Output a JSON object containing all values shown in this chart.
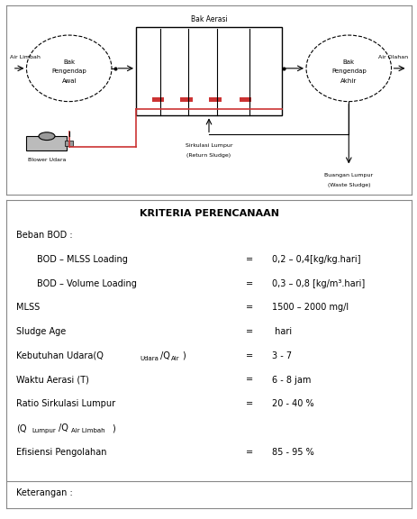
{
  "title": "KRITERIA PERENCANAAN",
  "rows": [
    {
      "label": "Beban BOD :",
      "eq": "",
      "value": "",
      "indent": 0
    },
    {
      "label": "BOD – MLSS Loading",
      "eq": "=",
      "value": "0,2 – 0,4[kg/kg.hari]",
      "indent": 1
    },
    {
      "label": "BOD – Volume Loading",
      "eq": "=",
      "value": "0,3 – 0,8 [kg/m³.hari]",
      "indent": 1
    },
    {
      "label": "MLSS",
      "eq": "=",
      "value": "1500 – 2000 mg/l",
      "indent": 0
    },
    {
      "label": "Sludge Age",
      "eq": "=",
      "value": " hari",
      "indent": 0
    },
    {
      "label": "Kebutuhan Udara(Q_Udara/Q_Air)",
      "eq": "=",
      "value": "3 - 7",
      "indent": 0
    },
    {
      "label": "Waktu Aerasi (T)",
      "eq": "=",
      "value": "6 - 8 jam",
      "indent": 0
    },
    {
      "label": "Ratio Sirkulasi Lumpur",
      "eq": "=",
      "value": "20 - 40 %",
      "indent": 0
    },
    {
      "label": "(Q_Lumpur/Q_Air Limbah)",
      "eq": "",
      "value": "",
      "indent": 0
    },
    {
      "label": "Efisiensi Pengolahan",
      "eq": "=",
      "value": "85 - 95 %",
      "indent": 0
    }
  ],
  "footer": "Keterangan :",
  "bg_color": "#ffffff",
  "border_color": "#888888",
  "text_color": "#000000"
}
